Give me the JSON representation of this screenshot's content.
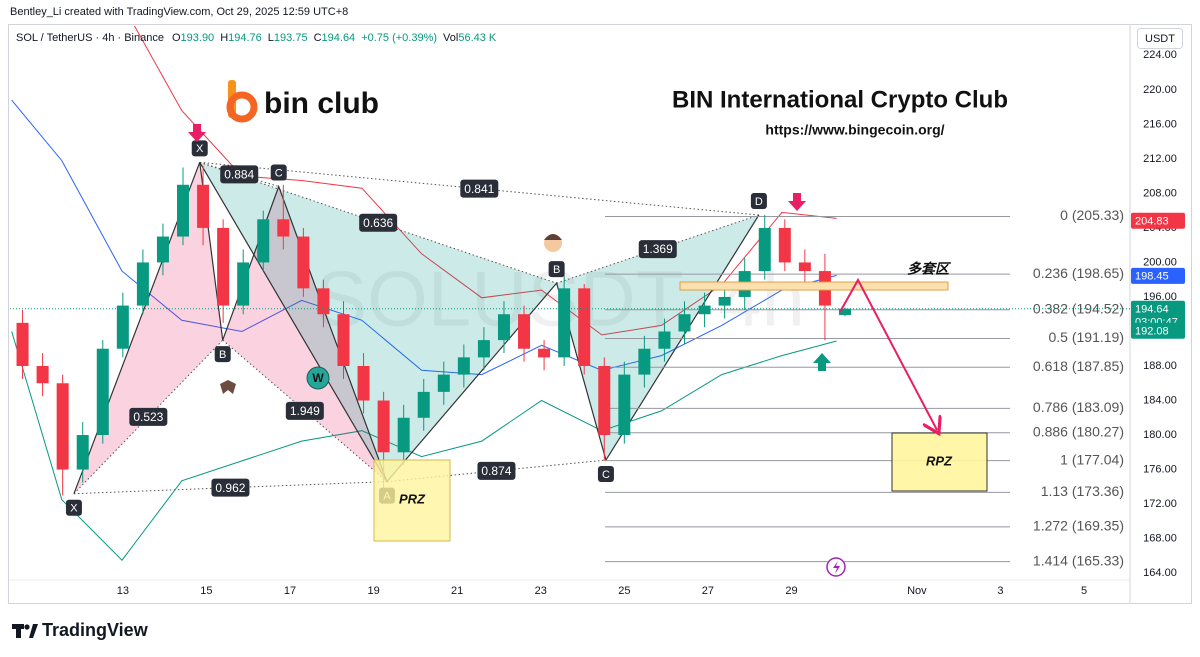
{
  "top_caption": "Bentley_Li created with TradingView.com, Oct 29, 2025 12:59 UTC+8",
  "logo": "bin club",
  "title": "BIN International Crypto Club",
  "url": "https://www.bingecoin.org/",
  "footer": "TradingView",
  "chart_data": {
    "type": "candlestick",
    "currency": "USDT",
    "watermark": "SOLUSDT, 4h",
    "legend": {
      "symbol": "SOL / TetherUS · 4h · Binance",
      "fields": [
        {
          "key": "O",
          "value": "193.90"
        },
        {
          "key": "H",
          "value": "194.76"
        },
        {
          "key": "L",
          "value": "193.75"
        },
        {
          "key": "C",
          "value": "194.64"
        }
      ],
      "change": "+0.75 (+0.39%)",
      "volume": {
        "key": "Vol",
        "value": "56.43 K"
      }
    },
    "up_color": "#089981",
    "down_color": "#f23645",
    "x": [
      10.6,
      11.08,
      11.56,
      12.04,
      12.52,
      13,
      13.48,
      13.96,
      14.44,
      14.92,
      15.4,
      15.88,
      16.36,
      16.84,
      17.32,
      17.8,
      18.28,
      18.76,
      19.24,
      19.72,
      20.2,
      20.68,
      21.16,
      21.64,
      22.12,
      22.6,
      23.08,
      23.56,
      24.04,
      24.52,
      25,
      25.48,
      25.96,
      26.44,
      26.92,
      27.4,
      27.88,
      28.36,
      28.84,
      29.32,
      29.8,
      30.28
    ],
    "open": [
      193,
      188,
      186,
      176,
      180,
      190,
      195,
      200,
      203,
      209,
      204,
      195,
      200,
      205,
      203,
      197,
      194,
      188,
      184,
      178,
      182,
      185,
      187,
      189,
      191,
      194,
      190,
      189,
      197,
      188,
      180,
      187,
      190,
      192,
      194,
      195,
      196,
      199,
      204,
      200,
      199,
      193.9
    ],
    "high": [
      194.5,
      189.5,
      187,
      181.5,
      191,
      196.5,
      201.5,
      204.5,
      211,
      211.2,
      205,
      201.5,
      206,
      209,
      204,
      198,
      195.5,
      189.5,
      185,
      183.5,
      186.5,
      188.5,
      190.5,
      192.5,
      195.5,
      195,
      191,
      198.5,
      197.5,
      189,
      188.5,
      191.5,
      193.5,
      195.5,
      196.5,
      197.5,
      200.5,
      205.5,
      205,
      201.5,
      201,
      194.76
    ],
    "low": [
      186.5,
      184.5,
      173,
      174.5,
      179,
      189,
      194,
      198.5,
      202,
      202,
      193,
      194,
      199,
      201.5,
      196,
      192.5,
      186.5,
      182.5,
      173.5,
      176.5,
      180.5,
      183.5,
      185.5,
      187.5,
      189.5,
      188.5,
      187.5,
      188,
      187,
      177,
      179,
      185.5,
      188.5,
      190.5,
      192.5,
      193.5,
      194.5,
      198,
      199,
      197.5,
      191,
      193.75
    ],
    "close": [
      188,
      186,
      176,
      180,
      190,
      195,
      200,
      203,
      209,
      204,
      195,
      200,
      205,
      203,
      197,
      194,
      188,
      184,
      178,
      182,
      185,
      187,
      189,
      191,
      194,
      190,
      189,
      197,
      188,
      180,
      187,
      190,
      192,
      194,
      195,
      196,
      199,
      204,
      200,
      199,
      195,
      194.64
    ],
    "xlim": [
      10.3,
      37.1
    ],
    "xticks": [
      13,
      15,
      17,
      19,
      21,
      23,
      25,
      27,
      29,
      {
        "value": 32,
        "label": "Nov"
      },
      {
        "value": 34,
        "label": "3"
      },
      {
        "value": 36,
        "label": "5"
      }
    ],
    "ylim": [
      163.2,
      227.4
    ],
    "yticks": [
      {
        "value": 164,
        "label": "164.00"
      },
      {
        "value": 168,
        "label": "168.00"
      },
      {
        "value": 172,
        "label": "172.00"
      },
      {
        "value": 176,
        "label": "176.00"
      },
      {
        "value": 180,
        "label": "180.00"
      },
      {
        "value": 184,
        "label": "184.00"
      },
      {
        "value": 188,
        "label": "188.00"
      },
      {
        "value": 192,
        "label": "192.00"
      },
      {
        "value": 196,
        "label": "196.00"
      },
      {
        "value": 200,
        "label": "200.00"
      },
      {
        "value": 204,
        "label": "204.00"
      },
      {
        "value": 208,
        "label": "208.00"
      },
      {
        "value": 212,
        "label": "212.00"
      },
      {
        "value": 216,
        "label": "216.00"
      },
      {
        "value": 220,
        "label": "220.00"
      },
      {
        "value": 224,
        "label": "224.00"
      }
    ],
    "grid": false,
    "bands": {
      "x": [
        10.34,
        11.54,
        12.98,
        14.41,
        15.85,
        17.28,
        18.72,
        20.15,
        21.59,
        23.02,
        24.46,
        25.89,
        27.33,
        28.77,
        30.08
      ],
      "series": [
        {
          "color": "#f23645",
          "values": [
            null,
            null,
            230,
            217.6,
            210,
            209.5,
            208.6,
            201,
            195.9,
            196.8,
            191.6,
            192.7,
            197.4,
            205.8,
            205.1
          ]
        },
        {
          "color": "#2962ff",
          "values": [
            218.8,
            211.8,
            199,
            193.3,
            192,
            195.6,
            193.3,
            187.5,
            187,
            190.4,
            187.5,
            189.2,
            192.7,
            196.8,
            198.5
          ]
        },
        {
          "color": "#089981",
          "values": [
            192,
            172.5,
            165.5,
            174.7,
            177,
            179.3,
            180.5,
            177.5,
            179.3,
            184,
            180.5,
            182.8,
            187,
            189.2,
            190.9
          ]
        }
      ]
    },
    "pivots": [
      {
        "label": "X",
        "x": 11.83,
        "y": 173.2
      },
      {
        "label": "X",
        "x": 14.84,
        "y": 211.6
      },
      {
        "label": "B",
        "x": 15.39,
        "y": 191
      },
      {
        "label": "C",
        "x": 16.73,
        "y": 208.8
      },
      {
        "label": "A",
        "x": 19.32,
        "y": 174.6
      },
      {
        "label": "B",
        "x": 23.38,
        "y": 197.6
      },
      {
        "label": "C",
        "x": 24.56,
        "y": 177.1
      },
      {
        "label": "D",
        "x": 28.22,
        "y": 205.5
      }
    ],
    "pattern_colors": [
      "#e91e63",
      "#009688"
    ],
    "ratios": [
      0.523,
      0.884,
      1.949,
      0.962,
      0.636,
      0.841,
      0.874,
      1.369
    ],
    "fib": [
      {
        "label": "0 (205.33)",
        "value": 205.33
      },
      {
        "label": "0.236 (198.65)",
        "value": 198.65
      },
      {
        "label": "0.382 (194.52)",
        "value": 194.52
      },
      {
        "label": "0.5 (191.19)",
        "value": 191.19
      },
      {
        "label": "0.618 (187.85)",
        "value": 187.85
      },
      {
        "label": "0.786 (183.09)",
        "value": 183.09
      },
      {
        "label": "0.886 (180.27)",
        "value": 180.27
      },
      {
        "label": "1 (177.04)",
        "value": 177.04
      },
      {
        "label": "1.13 (173.36)",
        "value": 173.36
      },
      {
        "label": "1.272 (169.35)",
        "value": 169.35
      },
      {
        "label": "1.414 (165.33)",
        "value": 165.33
      }
    ],
    "price_labels": [
      {
        "value": 204.83,
        "color": "#f23645"
      },
      {
        "value": 198.45,
        "color": "#2962ff"
      },
      {
        "value": 194.64,
        "countdown": "03:00:47",
        "color": "#089981"
      },
      {
        "value": 192.08,
        "color": "#089981"
      }
    ],
    "annotations": {
      "prz": "PRZ",
      "rpz": "RPZ",
      "zone": "多套区",
      "w": "W"
    }
  }
}
